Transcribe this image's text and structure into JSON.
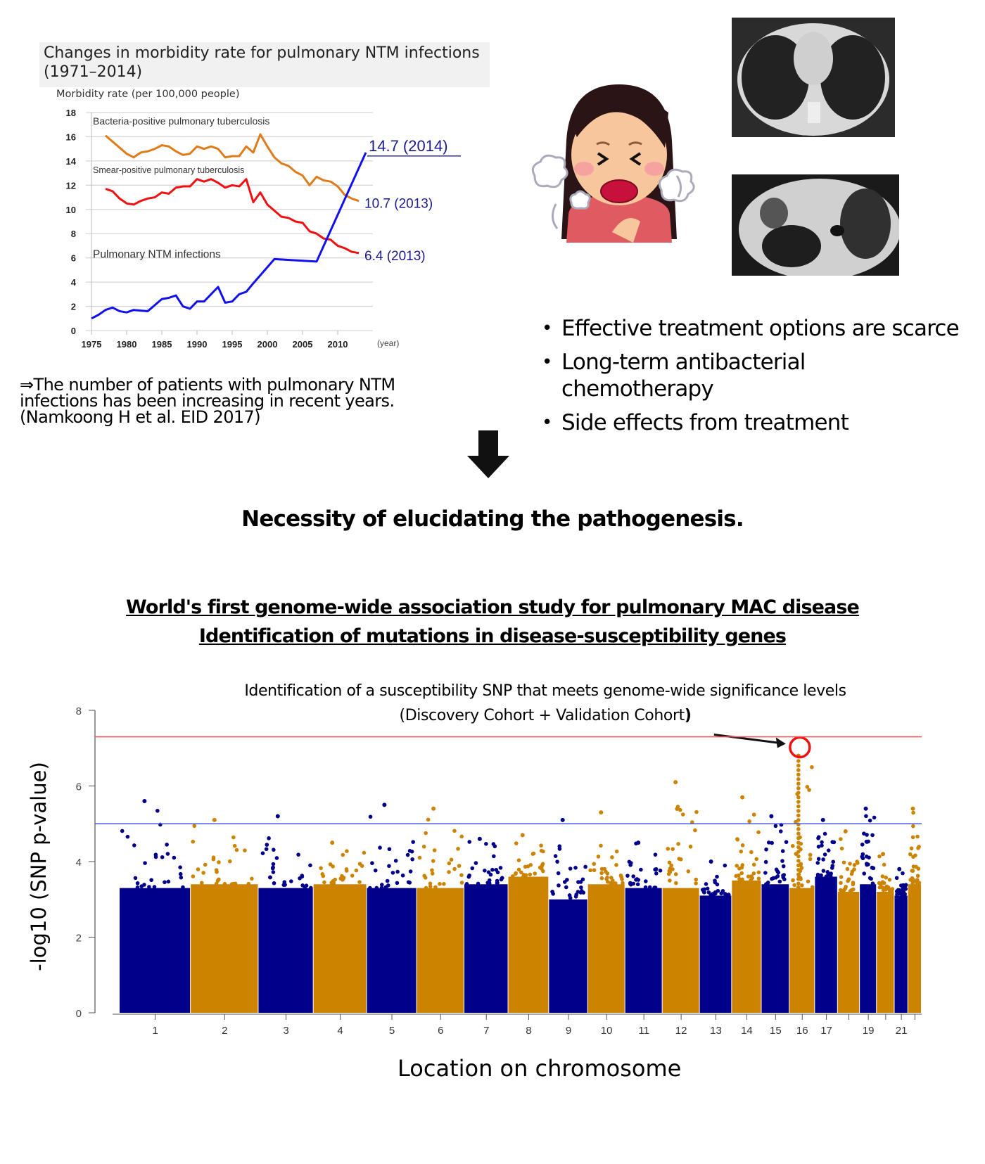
{
  "chart_data": [
    {
      "type": "line",
      "title": "Changes in morbidity rate for pulmonary NTM infections (1971–2014)",
      "ylabel": "Morbidity rate (per 100,000 people)",
      "xlabel": "(year)",
      "ylim": [
        0,
        18
      ],
      "xlim": [
        1975,
        2014
      ],
      "yticks": [
        "0",
        "2",
        "4",
        "6",
        "8",
        "10",
        "12",
        "14",
        "16",
        "18"
      ],
      "xticks": [
        "1975",
        "1980",
        "1985",
        "1990",
        "1995",
        "2000",
        "2005",
        "2010"
      ],
      "grid": true,
      "series": [
        {
          "name": "Bacteria-positive pulmonary tuberculosis",
          "color": "#e07b1a",
          "x": [
            1977,
            1978,
            1979,
            1980,
            1981,
            1982,
            1983,
            1984,
            1985,
            1986,
            1987,
            1988,
            1989,
            1990,
            1991,
            1992,
            1993,
            1994,
            1995,
            1996,
            1997,
            1998,
            1999,
            2000,
            2001,
            2002,
            2003,
            2004,
            2005,
            2006,
            2007,
            2008,
            2009,
            2010,
            2011,
            2012,
            2013
          ],
          "y": [
            16.1,
            15.6,
            15.1,
            14.6,
            14.3,
            14.7,
            14.8,
            15.0,
            15.3,
            15.2,
            14.8,
            14.5,
            14.6,
            15.2,
            15.0,
            15.2,
            15.0,
            14.3,
            14.4,
            14.4,
            15.2,
            14.7,
            16.2,
            15.2,
            14.3,
            13.8,
            13.6,
            13.1,
            12.8,
            12.0,
            12.7,
            12.4,
            12.3,
            11.9,
            11.2,
            10.9,
            10.7
          ]
        },
        {
          "name": "Smear-positive pulmonary tuberculosis",
          "color": "#f01010",
          "x": [
            1977,
            1978,
            1979,
            1980,
            1981,
            1982,
            1983,
            1984,
            1985,
            1986,
            1987,
            1988,
            1989,
            1990,
            1991,
            1992,
            1993,
            1994,
            1995,
            1996,
            1997,
            1998,
            1999,
            2000,
            2001,
            2002,
            2003,
            2004,
            2005,
            2006,
            2007,
            2008,
            2009,
            2010,
            2011,
            2012,
            2013
          ],
          "y": [
            11.7,
            11.5,
            10.9,
            10.5,
            10.4,
            10.7,
            10.9,
            11.0,
            11.4,
            11.3,
            11.8,
            11.9,
            11.9,
            12.5,
            12.3,
            12.5,
            12.2,
            11.8,
            12.0,
            11.9,
            12.5,
            10.6,
            11.4,
            10.4,
            9.9,
            9.4,
            9.3,
            9.0,
            8.9,
            8.2,
            8.0,
            7.6,
            7.5,
            7.0,
            6.8,
            6.5,
            6.4
          ]
        },
        {
          "name": "Pulmonary NTM infections",
          "color": "#1010f0",
          "x": [
            1975,
            1976,
            1977,
            1978,
            1979,
            1980,
            1981,
            1982,
            1983,
            1984,
            1985,
            1986,
            1987,
            1988,
            1989,
            1990,
            1991,
            1992,
            1993,
            1994,
            1995,
            1996,
            1997,
            1998,
            2001,
            2007,
            2014
          ],
          "y": [
            1.0,
            1.3,
            1.7,
            1.9,
            1.6,
            1.5,
            1.7,
            1.65,
            1.6,
            2.1,
            2.6,
            2.7,
            2.9,
            2.0,
            1.8,
            2.4,
            2.4,
            3.0,
            3.6,
            2.3,
            2.4,
            3.0,
            3.2,
            3.9,
            5.9,
            5.7,
            14.7
          ]
        }
      ],
      "annotations": [
        {
          "text": "14.7 (2014)",
          "series": 2
        },
        {
          "text": "10.7 (2013)",
          "series": 0
        },
        {
          "text": "6.4 (2013)",
          "series": 1
        }
      ]
    },
    {
      "type": "scatter",
      "subtype": "manhattan",
      "title": "Identification of a susceptibility SNP that meets genome-wide significance levels",
      "subtitle_before": "(Discovery Cohort + Validation Cohort",
      "subtitle_paren": ")",
      "ylabel": "-log10 (SNP p-value)",
      "xlabel": "Location on chromosome",
      "ylim": [
        0,
        8
      ],
      "yticks": [
        "0",
        "2",
        "4",
        "6",
        "8"
      ],
      "genome_wide_threshold": 7.3,
      "suggestive_threshold": 5.0,
      "colors": {
        "odd": "#00008b",
        "even": "#cc8400",
        "genome_line": "#ff5050",
        "suggestive_line": "#4a5ae0",
        "highlight": "#ee1111"
      },
      "chromosomes": [
        "1",
        "2",
        "3",
        "4",
        "5",
        "6",
        "7",
        "8",
        "9",
        "10",
        "11",
        "12",
        "13",
        "14",
        "15",
        "16",
        "17",
        "18",
        "19",
        "20",
        "21",
        "22"
      ],
      "xtick_labels": [
        "1",
        "2",
        "3",
        "4",
        "5",
        "6",
        "7",
        "8",
        "9",
        "10",
        "11",
        "12",
        "13",
        "14",
        "15",
        "16",
        "17",
        "",
        "19",
        "",
        "21",
        ""
      ],
      "chrom_block_top": [
        3.3,
        3.4,
        3.3,
        3.4,
        3.3,
        3.3,
        3.4,
        3.6,
        3.0,
        3.4,
        3.3,
        3.3,
        3.1,
        3.5,
        3.4,
        3.3,
        3.6,
        3.2,
        3.4,
        3.2,
        3.1,
        3.4
      ],
      "chrom_peak": [
        5.6,
        5.1,
        5.2,
        4.5,
        5.5,
        5.4,
        4.6,
        4.7,
        5.1,
        5.3,
        4.5,
        6.1,
        4.0,
        5.7,
        5.2,
        6.8,
        5.1,
        4.8,
        5.4,
        4.2,
        3.8,
        5.4
      ],
      "lead_snp": {
        "chromosome": "16",
        "value": 6.8
      }
    }
  ],
  "conclusion_lines": [
    "⇒The number of patients with pulmonary NTM",
    "infections has been increasing in recent years.",
    "(Namkoong H et al. EID 2017)"
  ],
  "bullets": [
    "Effective treatment options are scarce",
    "Long-term antibacterial chemotherapy",
    "Side effects from treatment"
  ],
  "bullet_2_lines": [
    "Long-term antibacterial",
    "chemotherapy"
  ],
  "necessity": "Necessity of elucidating the pathogenesis.",
  "gwas_title_1": "World's first genome-wide association study for pulmonary MAC disease",
  "gwas_title_2": "Identification of mutations in disease-susceptibility genes"
}
